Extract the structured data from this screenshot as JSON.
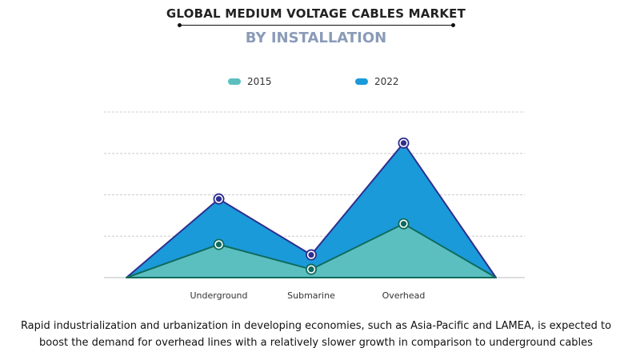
{
  "chart_data": {
    "type": "area",
    "title": "GLOBAL MEDIUM VOLTAGE CABLES MARKET",
    "subtitle": "BY INSTALLATION",
    "categories": [
      "Underground",
      "Submarine",
      "Overhead"
    ],
    "series": [
      {
        "name": "2015",
        "values": [
          0.8,
          0.2,
          1.3
        ],
        "color": "#5bbfbf",
        "line_color": "#0f6b5e"
      },
      {
        "name": "2022",
        "values": [
          1.9,
          0.55,
          3.25
        ],
        "color": "#1a9ad9",
        "line_color": "#2e2f8f"
      }
    ],
    "ylim": [
      0,
      4
    ],
    "grid": true,
    "legend_position": "top-center",
    "xlabel": "",
    "ylabel": ""
  },
  "caption_lines": [
    "Rapid industrialization and urbanization in developing economies, such as Asia-Pacific and LAMEA, is expected to",
    "boost the demand for overhead lines with a relatively slower growth in comparison to underground cables"
  ]
}
